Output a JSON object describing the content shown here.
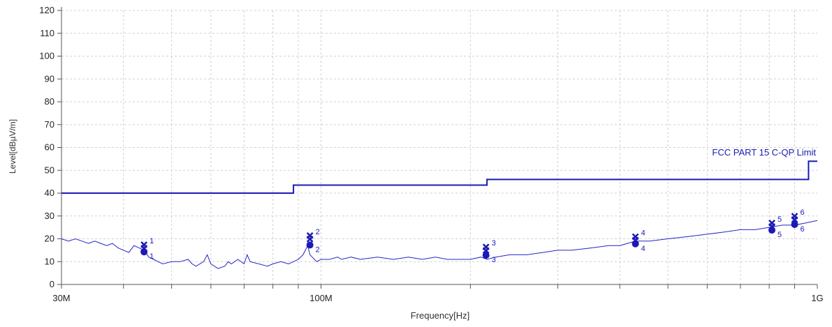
{
  "chart_data": {
    "type": "line",
    "title": "",
    "xlabel": "Frequency[Hz]",
    "ylabel": "Level[dBµV/m]",
    "xscale": "log",
    "xlim": [
      30000000,
      1000000000
    ],
    "ylim": [
      0,
      120
    ],
    "x_tick_labels": [
      {
        "value": 30000000,
        "label": "30M"
      },
      {
        "value": 100000000,
        "label": "100M"
      },
      {
        "value": 1000000000,
        "label": "1G"
      }
    ],
    "y_ticks": [
      0,
      10,
      20,
      30,
      40,
      50,
      60,
      70,
      80,
      90,
      100,
      110,
      120
    ],
    "grid": true,
    "colors": {
      "series": "#2424c8",
      "limit": "#1a1ab4",
      "grid": "#d0d0d0",
      "axis": "#555555",
      "marker": "#1a1ab4"
    },
    "series": [
      {
        "name": "FCC PART 15 C-QP Limit",
        "label_position": "above right end",
        "x": [
          30000000,
          88000000,
          88000000,
          216000000,
          216000000,
          960000000,
          960000000,
          1000000000
        ],
        "y": [
          40,
          40,
          43.5,
          43.5,
          46,
          46,
          54,
          54
        ]
      },
      {
        "name": "",
        "x": [
          30000000,
          31000000,
          32000000,
          33000000,
          34000000,
          35000000,
          36000000,
          37000000,
          38000000,
          39000000,
          40000000,
          41000000,
          42000000,
          43000000,
          44000000,
          45000000,
          46000000,
          47000000,
          48000000,
          50000000,
          52000000,
          54000000,
          55000000,
          56000000,
          58000000,
          59000000,
          60000000,
          62000000,
          64000000,
          65000000,
          66000000,
          68000000,
          70000000,
          71000000,
          72000000,
          75000000,
          78000000,
          80000000,
          83000000,
          86000000,
          88000000,
          90000000,
          92000000,
          94000000,
          95000000,
          96000000,
          97000000,
          98000000,
          100000000,
          104000000,
          108000000,
          110000000,
          115000000,
          120000000,
          130000000,
          140000000,
          150000000,
          160000000,
          170000000,
          180000000,
          190000000,
          200000000,
          210000000,
          216000000,
          225000000,
          240000000,
          260000000,
          280000000,
          300000000,
          320000000,
          350000000,
          380000000,
          400000000,
          430000000,
          460000000,
          500000000,
          550000000,
          600000000,
          650000000,
          700000000,
          750000000,
          800000000,
          850000000,
          900000000,
          950000000,
          1000000000
        ],
        "y": [
          20,
          19,
          20,
          19,
          18,
          19,
          18,
          17,
          18,
          16,
          15,
          14,
          17,
          16,
          15,
          12,
          11,
          10,
          9,
          10,
          10,
          11,
          9,
          8,
          10,
          13,
          9,
          7,
          8,
          10,
          9,
          11,
          9,
          13,
          10,
          9,
          8,
          9,
          10,
          9,
          10,
          11,
          13,
          17,
          13,
          12,
          11,
          10,
          11,
          11,
          12,
          11,
          12,
          11,
          12,
          11,
          12,
          11,
          12,
          11,
          11,
          11,
          12,
          11,
          12,
          13,
          13,
          14,
          15,
          15,
          16,
          17,
          17,
          19,
          19,
          20,
          21,
          22,
          23,
          24,
          24,
          25,
          26,
          26,
          27,
          28
        ]
      }
    ],
    "markers": [
      {
        "id": "1",
        "x": 44000000,
        "y_peak": 16.5,
        "y_qp": 15.5,
        "label_top": "1",
        "label_bottom": "1"
      },
      {
        "id": "2",
        "x": 95000000,
        "y_peak": 20.5,
        "y_qp": 18.5,
        "label_top": "2",
        "label_bottom": "2"
      },
      {
        "id": "3",
        "x": 215000000,
        "y_peak": 15.5,
        "y_qp": 14,
        "label_top": "3",
        "label_bottom": "3"
      },
      {
        "id": "4",
        "x": 430000000,
        "y_peak": 20,
        "y_qp": 19,
        "label_top": "4",
        "label_bottom": "4"
      },
      {
        "id": "5",
        "x": 810000000,
        "y_peak": 26,
        "y_qp": 25,
        "label_top": "5",
        "label_bottom": "5"
      },
      {
        "id": "6",
        "x": 900000000,
        "y_peak": 29,
        "y_qp": 27.5,
        "label_top": "6",
        "label_bottom": "6"
      }
    ]
  }
}
